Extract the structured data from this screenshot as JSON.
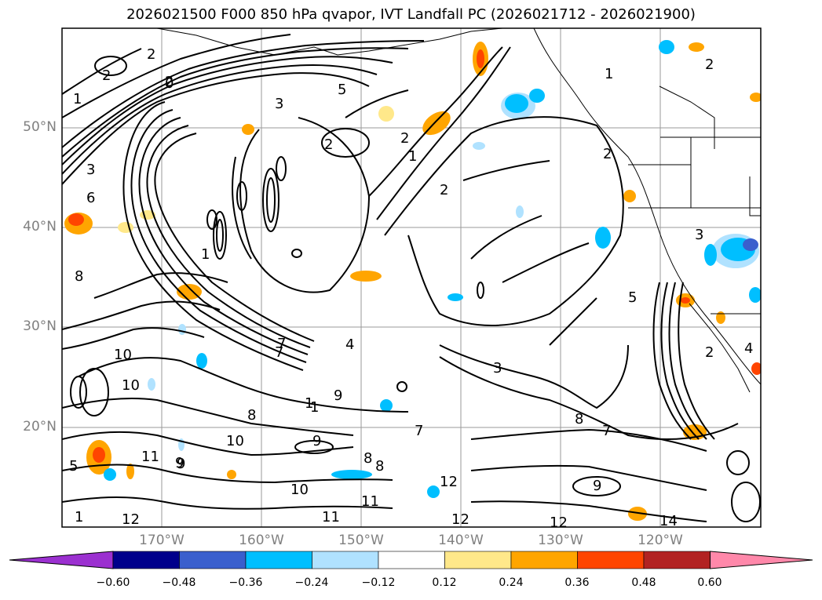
{
  "title": "2026021500 F000 850 hPa qvapor, IVT Landfall PC (2026021712 - 2026021900)",
  "map": {
    "lon_range": [
      -180,
      -110
    ],
    "lat_range": [
      10,
      60
    ],
    "lat_ticks": [
      "50°N",
      "40°N",
      "30°N",
      "20°N"
    ],
    "lon_ticks": [
      "170°W",
      "160°W",
      "150°W",
      "140°W",
      "130°W",
      "120°W"
    ],
    "contour_labels": [
      "2",
      "2",
      "2",
      "2",
      "1",
      "3",
      "5",
      "2",
      "2",
      "2",
      "2",
      "6",
      "8",
      "8",
      "1",
      "1",
      "3",
      "3",
      "4",
      "5",
      "7",
      "9",
      "10",
      "10",
      "10",
      "11",
      "9",
      "9",
      "8",
      "7",
      "7",
      "7",
      "8",
      "8",
      "9",
      "10",
      "11",
      "12",
      "12",
      "12",
      "12",
      "11",
      "9",
      "1",
      "5",
      "4",
      "3",
      "2",
      "1",
      "14",
      "0",
      "1",
      "1"
    ]
  },
  "colorbar": {
    "tick_labels": [
      "−0.60",
      "−0.48",
      "−0.36",
      "−0.24",
      "−0.12",
      "0.12",
      "0.24",
      "0.36",
      "0.48",
      "0.60"
    ],
    "colors": [
      "#9b30d0",
      "#00008b",
      "#3a5fcd",
      "#00bfff",
      "#b0e2ff",
      "#ffffff",
      "#ffe88a",
      "#ffa500",
      "#ff4500",
      "#b22222",
      "#ff88aa"
    ]
  }
}
